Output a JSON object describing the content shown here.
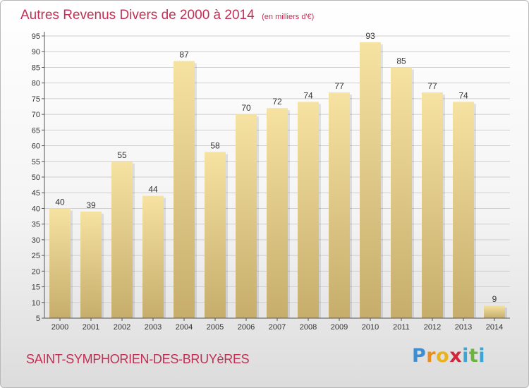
{
  "header": {
    "title": "Autres Revenus Divers de 2000 à 2014",
    "subtitle": "(en milliers d'€)"
  },
  "footer": {
    "town": "SAINT-SYMPHORIEN-DES-BRUYèRES",
    "logo": {
      "letters": [
        "P",
        "r",
        "o",
        "x",
        "i",
        "t",
        "i"
      ],
      "colors": [
        "#3c8fd3",
        "#e98d1e",
        "#e9b31e",
        "#d0253a",
        "#3aa6d8",
        "#6db33f",
        "#3aa6d8"
      ]
    }
  },
  "colors": {
    "accent": "#c22f55",
    "bar_light": "#f6e2a1",
    "bar_dark": "#c6ad6c",
    "grid": "#cfcfcf"
  },
  "chart_data": {
    "type": "bar",
    "categories": [
      "2000",
      "2001",
      "2002",
      "2003",
      "2004",
      "2005",
      "2006",
      "2007",
      "2008",
      "2009",
      "2010",
      "2011",
      "2012",
      "2013",
      "2014"
    ],
    "values": [
      40,
      39,
      55,
      44,
      87,
      58,
      70,
      72,
      74,
      77,
      93,
      85,
      77,
      74,
      9
    ],
    "value_labels": [
      "40",
      "39",
      "55",
      "44",
      "87",
      "58",
      "70",
      "72",
      "74",
      "77",
      "93",
      "85",
      "77",
      "74",
      "9"
    ],
    "ylim": [
      5,
      95
    ],
    "yticks": [
      "5",
      "10",
      "15",
      "20",
      "25",
      "30",
      "35",
      "40",
      "45",
      "50",
      "55",
      "60",
      "65",
      "70",
      "75",
      "80",
      "85",
      "90",
      "95"
    ],
    "grid": true,
    "xlabel": "",
    "ylabel": ""
  }
}
